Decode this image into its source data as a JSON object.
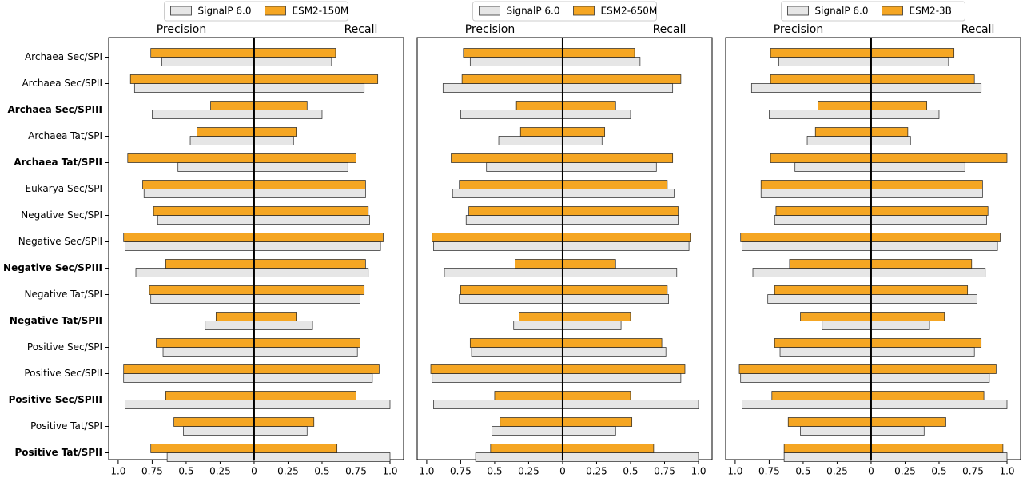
{
  "chart_data": [
    {
      "type": "butterfly_bar",
      "left_label": "Precision",
      "right_label": "Recall",
      "categories": [
        "Archaea Sec/SPI",
        "Archaea Sec/SPII",
        "Archaea Sec/SPIII",
        "Archaea Tat/SPI",
        "Archaea Tat/SPII",
        "Eukarya Sec/SPI",
        "Negative Sec/SPI",
        "Negative Sec/SPII",
        "Negative Sec/SPIII",
        "Negative Tat/SPI",
        "Negative Tat/SPII",
        "Positive Sec/SPI",
        "Positive Sec/SPII",
        "Positive Sec/SPIII",
        "Positive Tat/SPI",
        "Positive Tat/SPII"
      ],
      "bold_categories": [
        false,
        false,
        true,
        false,
        true,
        false,
        false,
        false,
        true,
        false,
        true,
        false,
        false,
        true,
        false,
        true
      ],
      "xlim": [
        -1.07,
        1.1
      ],
      "xticks": [
        {
          "value": -1,
          "label": "1.0"
        },
        {
          "value": -0.75,
          "label": "0.75"
        },
        {
          "value": -0.5,
          "label": "0.5"
        },
        {
          "value": -0.25,
          "label": "0.25"
        },
        0,
        0.25,
        0.5,
        0.75,
        {
          "value": 1,
          "label": "1.0"
        }
      ],
      "series": [
        {
          "name": "SignalP 6.0",
          "color": "#e6e6e6",
          "precision": [
            0.68,
            0.88,
            0.75,
            0.47,
            0.56,
            0.81,
            0.71,
            0.95,
            0.87,
            0.76,
            0.36,
            0.67,
            0.96,
            0.95,
            0.52,
            0.64
          ],
          "recall": [
            0.57,
            0.81,
            0.5,
            0.29,
            0.69,
            0.82,
            0.85,
            0.93,
            0.84,
            0.78,
            0.43,
            0.76,
            0.87,
            1.0,
            0.39,
            1.0
          ]
        },
        {
          "name": "ESM2-150M",
          "color": "#f5a623",
          "precision": [
            0.76,
            0.91,
            0.32,
            0.42,
            0.93,
            0.82,
            0.74,
            0.96,
            0.65,
            0.77,
            0.28,
            0.72,
            0.96,
            0.65,
            0.59,
            0.76
          ],
          "recall": [
            0.6,
            0.91,
            0.39,
            0.31,
            0.75,
            0.82,
            0.84,
            0.95,
            0.82,
            0.81,
            0.31,
            0.78,
            0.92,
            0.75,
            0.44,
            0.61
          ]
        }
      ]
    },
    {
      "type": "butterfly_bar",
      "left_label": "Precision",
      "right_label": "Recall",
      "xlim": [
        -1.07,
        1.1
      ],
      "xticks": [
        {
          "value": -1,
          "label": "1.0"
        },
        {
          "value": -0.75,
          "label": "0.75"
        },
        {
          "value": -0.5,
          "label": "0.5"
        },
        {
          "value": -0.25,
          "label": "0.25"
        },
        0,
        0.25,
        0.5,
        0.75,
        {
          "value": 1,
          "label": "1.0"
        }
      ],
      "series": [
        {
          "name": "SignalP 6.0",
          "color": "#e6e6e6",
          "precision": [
            0.68,
            0.88,
            0.75,
            0.47,
            0.56,
            0.81,
            0.71,
            0.95,
            0.87,
            0.76,
            0.36,
            0.67,
            0.96,
            0.95,
            0.52,
            0.64
          ],
          "recall": [
            0.57,
            0.81,
            0.5,
            0.29,
            0.69,
            0.82,
            0.85,
            0.93,
            0.84,
            0.78,
            0.43,
            0.76,
            0.87,
            1.0,
            0.39,
            1.0
          ]
        },
        {
          "name": "ESM2-650M",
          "color": "#f5a623",
          "precision": [
            0.73,
            0.74,
            0.34,
            0.31,
            0.82,
            0.76,
            0.69,
            0.96,
            0.35,
            0.75,
            0.32,
            0.68,
            0.97,
            0.5,
            0.46,
            0.53
          ],
          "recall": [
            0.53,
            0.87,
            0.39,
            0.31,
            0.81,
            0.77,
            0.85,
            0.94,
            0.39,
            0.77,
            0.5,
            0.73,
            0.9,
            0.5,
            0.51,
            0.67
          ]
        }
      ]
    },
    {
      "type": "butterfly_bar",
      "left_label": "Precision",
      "right_label": "Recall",
      "xlim": [
        -1.07,
        1.1
      ],
      "xticks": [
        {
          "value": -1,
          "label": "1.0"
        },
        {
          "value": -0.75,
          "label": "0.75"
        },
        {
          "value": -0.5,
          "label": "0.5"
        },
        {
          "value": -0.25,
          "label": "0.25"
        },
        0,
        0.25,
        0.5,
        0.75,
        {
          "value": 1,
          "label": "1.0"
        }
      ],
      "series": [
        {
          "name": "SignalP 6.0",
          "color": "#e6e6e6",
          "precision": [
            0.68,
            0.88,
            0.75,
            0.47,
            0.56,
            0.81,
            0.71,
            0.95,
            0.87,
            0.76,
            0.36,
            0.67,
            0.96,
            0.95,
            0.52,
            0.64
          ],
          "recall": [
            0.57,
            0.81,
            0.5,
            0.29,
            0.69,
            0.82,
            0.85,
            0.93,
            0.84,
            0.78,
            0.43,
            0.76,
            0.87,
            1.0,
            0.39,
            1.0
          ]
        },
        {
          "name": "ESM2-3B",
          "color": "#f5a623",
          "precision": [
            0.74,
            0.74,
            0.39,
            0.41,
            0.74,
            0.81,
            0.7,
            0.96,
            0.6,
            0.71,
            0.52,
            0.71,
            0.97,
            0.73,
            0.61,
            0.64
          ],
          "recall": [
            0.61,
            0.76,
            0.41,
            0.27,
            1.0,
            0.82,
            0.86,
            0.95,
            0.74,
            0.71,
            0.54,
            0.81,
            0.92,
            0.83,
            0.55,
            0.97
          ]
        }
      ]
    }
  ]
}
